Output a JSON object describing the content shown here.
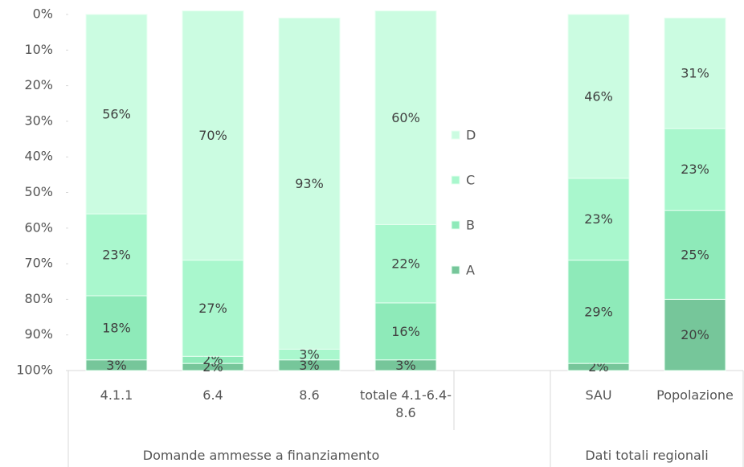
{
  "chart_data": {
    "type": "stacked_bar",
    "categories": [
      "4.1.1",
      "6.4",
      "8.6",
      "totale 4.1-6.4-8.6",
      null,
      "SAU",
      "Popolazione"
    ],
    "groups": [
      {
        "label": "Domande ammesse a finanziamento",
        "span": [
          0,
          3
        ]
      },
      {
        "label": "Dati totali regionali",
        "span": [
          5,
          6
        ]
      }
    ],
    "series": [
      {
        "name": "A",
        "color": "#76c69a",
        "values": [
          3,
          2,
          3,
          3,
          null,
          2,
          20
        ],
        "value_labels": [
          "3%",
          "2%",
          "3%",
          "3%",
          null,
          "2%",
          "20%"
        ]
      },
      {
        "name": "B",
        "color": "#8eeab9",
        "values": [
          18,
          2,
          null,
          16,
          null,
          29,
          25
        ],
        "value_labels": [
          "18%",
          "2%",
          null,
          "16%",
          null,
          "29%",
          "25%"
        ]
      },
      {
        "name": "C",
        "color": "#a9f7cd",
        "values": [
          23,
          27,
          3,
          22,
          null,
          23,
          23
        ],
        "value_labels": [
          "23%",
          "27%",
          "3%",
          "22%",
          null,
          "23%",
          "23%"
        ]
      },
      {
        "name": "D",
        "color": "#cbfce1",
        "values": [
          56,
          70,
          93,
          60,
          null,
          46,
          31
        ],
        "value_labels": [
          "56%",
          "70%",
          "93%",
          "60%",
          null,
          "46%",
          "31%"
        ]
      }
    ],
    "ylim": [
      0,
      100
    ],
    "y_inverted": true,
    "yticks": [
      {
        "value": 0,
        "label": "0%"
      },
      {
        "value": 10,
        "label": "10%"
      },
      {
        "value": 20,
        "label": "20%"
      },
      {
        "value": 30,
        "label": "30%"
      },
      {
        "value": 40,
        "label": "40%"
      },
      {
        "value": 50,
        "label": "50%"
      },
      {
        "value": 60,
        "label": "60%"
      },
      {
        "value": 70,
        "label": "70%"
      },
      {
        "value": 80,
        "label": "80%"
      },
      {
        "value": 90,
        "label": "90%"
      },
      {
        "value": 100,
        "label": "100%"
      }
    ],
    "legend": "center"
  }
}
